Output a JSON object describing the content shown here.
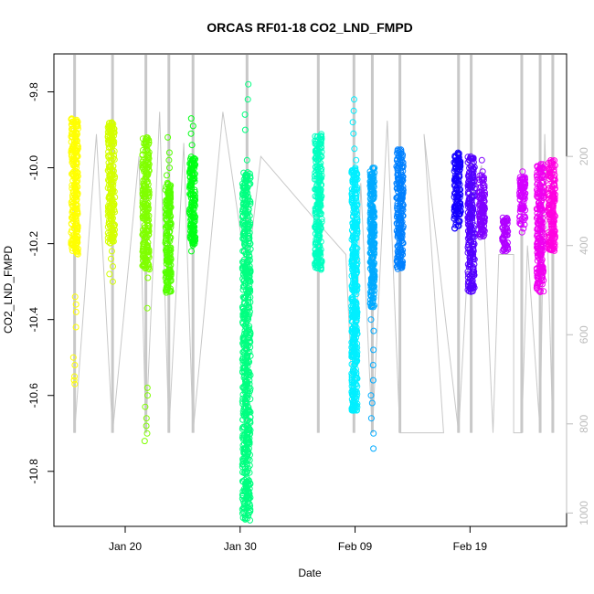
{
  "chart_data": {
    "type": "scatter",
    "title": "ORCAS RF01-18 CO2_LND_FMPD",
    "xlabel": "Date",
    "ylabel": "CO2_LND_FMPD",
    "x_tick_labels": [
      "Jan 20",
      "Jan 30",
      "Feb 09",
      "Feb 19"
    ],
    "x_tick_days": [
      20,
      30,
      40,
      50
    ],
    "x_axis_note": "day-of-year 2016 (Jan 20 = 20)",
    "xlim": [
      13.8,
      58.4
    ],
    "y_ticks": [
      -9.8,
      -10.0,
      -10.2,
      -10.4,
      -10.6,
      -10.8
    ],
    "y_tick_labels": [
      "-9.8",
      "-10.0",
      "-10.2",
      "-10.4",
      "-10.6",
      "-10.8"
    ],
    "ylim": [
      -10.945,
      -9.7
    ],
    "right_axis": {
      "ticks": [
        200,
        400,
        600,
        800,
        1000
      ],
      "tick_labels": [
        "200",
        "400",
        "600",
        "800",
        "1000"
      ],
      "range": [
        -30,
        1030
      ],
      "color": "#bdbdbd"
    },
    "flights": [
      {
        "color": "#FFFF00",
        "x0": 15.3,
        "x1": 15.9,
        "core": [
          -9.87,
          -10.23
        ],
        "outliers": [
          -10.34,
          -10.36,
          -10.38,
          -10.42,
          -10.5,
          -10.52,
          -10.55,
          -10.56,
          -10.57
        ]
      },
      {
        "color": "#D4FF00",
        "x0": 18.5,
        "x1": 19.1,
        "core": [
          -9.88,
          -10.2
        ],
        "outliers": [
          -10.22,
          -10.24,
          -10.26,
          -10.28,
          -10.3
        ]
      },
      {
        "color": "#80FF00",
        "x0": 21.5,
        "x1": 22.1,
        "core": [
          -9.92,
          -10.27
        ],
        "outliers": [
          -10.29,
          -10.37,
          -10.58,
          -10.6,
          -10.63,
          -10.66,
          -10.68,
          -10.7,
          -10.72
        ]
      },
      {
        "color": "#55FF00",
        "x0": 23.5,
        "x1": 24.0,
        "core": [
          -10.04,
          -10.33
        ],
        "outliers": [
          -9.92,
          -9.96,
          -9.98,
          -10.0,
          -10.02
        ]
      },
      {
        "color": "#00FF15",
        "x0": 25.6,
        "x1": 26.1,
        "core": [
          -9.97,
          -10.21
        ],
        "outliers": [
          -9.87,
          -9.89,
          -9.91,
          -9.94,
          -10.22
        ]
      },
      {
        "color": "#00FF80",
        "x0": 30.2,
        "x1": 30.9,
        "core": [
          -10.01,
          -10.93
        ],
        "outliers": [
          -9.9,
          -9.98,
          -9.82,
          -9.78,
          -9.86
        ]
      },
      {
        "color": "#00FFC0",
        "x0": 36.5,
        "x1": 37.1,
        "core": [
          -9.91,
          -10.27
        ],
        "outliers": []
      },
      {
        "color": "#00EFFF",
        "x0": 39.7,
        "x1": 40.2,
        "core": [
          -10.0,
          -10.64
        ],
        "outliers": [
          -9.82,
          -9.85,
          -9.88,
          -9.91,
          -9.95,
          -9.98
        ]
      },
      {
        "color": "#00AAFF",
        "x0": 41.3,
        "x1": 41.7,
        "core": [
          -10.0,
          -10.37
        ],
        "outliers": [
          -10.4,
          -10.43,
          -10.48,
          -10.52,
          -10.56,
          -10.6,
          -10.62,
          -10.66,
          -10.7,
          -10.74
        ]
      },
      {
        "color": "#0080FF",
        "x0": 43.6,
        "x1": 44.2,
        "core": [
          -9.95,
          -10.27
        ],
        "outliers": []
      },
      {
        "color": "#1500FF",
        "x0": 48.6,
        "x1": 49.2,
        "core": [
          -9.96,
          -10.16
        ],
        "outliers": []
      },
      {
        "color": "#5500FF",
        "x0": 49.8,
        "x1": 50.4,
        "core": [
          -9.97,
          -10.33
        ],
        "outliers": []
      },
      {
        "color": "#8000FF",
        "x0": 50.8,
        "x1": 51.3,
        "core": [
          -10.02,
          -10.19
        ],
        "outliers": [
          -9.98,
          -10.01,
          -10.04
        ]
      },
      {
        "color": "#B000FF",
        "x0": 52.8,
        "x1": 53.3,
        "core": [
          -10.13,
          -10.22
        ],
        "outliers": []
      },
      {
        "color": "#D400FF",
        "x0": 54.3,
        "x1": 54.8,
        "core": [
          -10.02,
          -10.15
        ],
        "outliers": [
          -10.01,
          -10.16,
          -10.17
        ]
      },
      {
        "color": "#F000F0",
        "x0": 55.8,
        "x1": 56.4,
        "core": [
          -9.99,
          -10.33
        ],
        "outliers": []
      },
      {
        "color": "#FF00E0",
        "x0": 56.8,
        "x1": 57.4,
        "core": [
          -9.98,
          -10.22
        ],
        "outliers": []
      }
    ],
    "altitude_spikes": [
      15.6,
      18.9,
      21.8,
      23.8,
      25.9,
      30.6,
      36.8,
      39.9,
      41.5,
      43.9,
      49.0,
      50.1,
      54.5,
      56.1,
      57.2
    ],
    "grid": false,
    "legend": "none"
  }
}
